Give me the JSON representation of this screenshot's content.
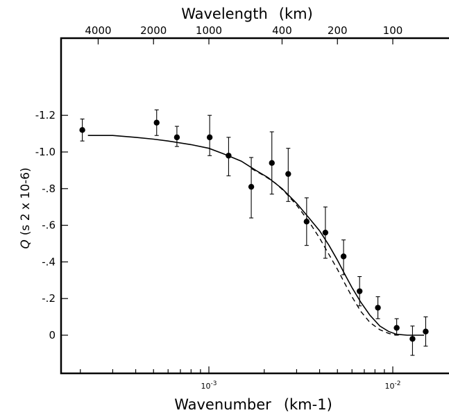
{
  "chart_data": {
    "type": "scatter",
    "x_scale": "log",
    "xlabel": "Wavenumber",
    "xlabel_unit": "(km-1)",
    "x_range": [
      0.00017,
      0.018
    ],
    "x_ticks": [
      {
        "value": 0.001,
        "label": "10-3"
      },
      {
        "value": 0.01,
        "label": "10-2"
      }
    ],
    "top_axis": {
      "label": "Wavelength",
      "unit": "(km)",
      "ticks": [
        {
          "value": 4000,
          "label": "4000"
        },
        {
          "value": 2000,
          "label": "2000"
        },
        {
          "value": 1000,
          "label": "1000"
        },
        {
          "value": 400,
          "label": "400"
        },
        {
          "value": 200,
          "label": "200"
        },
        {
          "value": 100,
          "label": "100"
        }
      ]
    },
    "ylabel_symbol": "Q",
    "ylabel_unit": "(s 2 x 10-6)",
    "y_range": [
      0.0,
      -1.4
    ],
    "y_inverted": true,
    "y_ticks": [
      {
        "value": -1.2,
        "label": "-1.2"
      },
      {
        "value": -1.0,
        "label": "-1.0"
      },
      {
        "value": -0.8,
        "label": "-.8"
      },
      {
        "value": -0.6,
        "label": "-.6"
      },
      {
        "value": -0.4,
        "label": "-.4"
      },
      {
        "value": -0.2,
        "label": "-.2"
      },
      {
        "value": 0.0,
        "label": "0"
      }
    ],
    "points": [
      {
        "x": 0.000205,
        "y": -1.12,
        "y_low": -1.06,
        "y_high": -1.18
      },
      {
        "x": 0.00052,
        "y": -1.16,
        "y_low": -1.09,
        "y_high": -1.23
      },
      {
        "x": 0.00067,
        "y": -1.08,
        "y_low": -1.03,
        "y_high": -1.14
      },
      {
        "x": 0.00101,
        "y": -1.08,
        "y_low": -0.98,
        "y_high": -1.2
      },
      {
        "x": 0.00128,
        "y": -0.98,
        "y_low": -0.87,
        "y_high": -1.08
      },
      {
        "x": 0.0017,
        "y": -0.81,
        "y_low": -0.64,
        "y_high": -0.97
      },
      {
        "x": 0.0022,
        "y": -0.94,
        "y_low": -0.77,
        "y_high": -1.11
      },
      {
        "x": 0.0027,
        "y": -0.88,
        "y_low": -0.73,
        "y_high": -1.02
      },
      {
        "x": 0.0034,
        "y": -0.62,
        "y_low": -0.49,
        "y_high": -0.75
      },
      {
        "x": 0.0043,
        "y": -0.56,
        "y_low": -0.42,
        "y_high": -0.7
      },
      {
        "x": 0.0054,
        "y": -0.43,
        "y_low": -0.33,
        "y_high": -0.52
      },
      {
        "x": 0.0066,
        "y": -0.24,
        "y_low": -0.16,
        "y_high": -0.32
      },
      {
        "x": 0.0083,
        "y": -0.15,
        "y_low": -0.09,
        "y_high": -0.21
      },
      {
        "x": 0.0105,
        "y": -0.04,
        "y_low": 0.0,
        "y_high": -0.09
      },
      {
        "x": 0.0128,
        "y": 0.02,
        "y_low": 0.11,
        "y_high": -0.05
      },
      {
        "x": 0.0151,
        "y": -0.02,
        "y_low": 0.06,
        "y_high": -0.1
      }
    ],
    "solid_curve": {
      "x": [
        0.00022,
        0.0003,
        0.0004,
        0.0005,
        0.0006,
        0.0008,
        0.001,
        0.0012,
        0.0015,
        0.0018,
        0.0021,
        0.0025,
        0.003,
        0.0035,
        0.004,
        0.0045,
        0.005,
        0.0055,
        0.006,
        0.0067,
        0.0075,
        0.0085,
        0.0095,
        0.0105,
        0.012,
        0.0135,
        0.0148
      ],
      "y": [
        -1.09,
        -1.09,
        -1.08,
        -1.07,
        -1.06,
        -1.04,
        -1.02,
        -0.99,
        -0.95,
        -0.9,
        -0.86,
        -0.8,
        -0.72,
        -0.64,
        -0.57,
        -0.49,
        -0.41,
        -0.33,
        -0.26,
        -0.18,
        -0.11,
        -0.05,
        -0.02,
        -0.005,
        0.0,
        0.0,
        0.0
      ]
    },
    "dashed_curve": {
      "x": [
        0.0017,
        0.002,
        0.0023,
        0.0026,
        0.003,
        0.0035,
        0.004,
        0.0045,
        0.005,
        0.0055,
        0.006,
        0.0067,
        0.0075,
        0.0085,
        0.0095,
        0.0105
      ],
      "y": [
        -0.91,
        -0.87,
        -0.83,
        -0.78,
        -0.71,
        -0.62,
        -0.53,
        -0.44,
        -0.36,
        -0.28,
        -0.21,
        -0.13,
        -0.07,
        -0.03,
        -0.01,
        0.0
      ]
    },
    "grid": false
  }
}
